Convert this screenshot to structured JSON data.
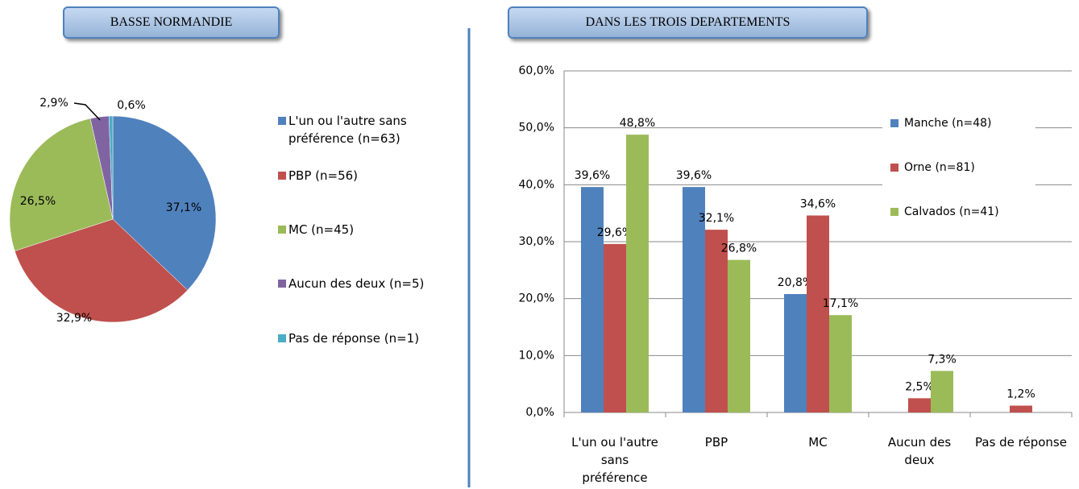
{
  "chart_data": [
    {
      "type": "pie",
      "title": "BASSE NORMANDIE",
      "categories": [
        "L'un ou l'autre sans préférence (n=63)",
        "PBP (n=56)",
        "MC (n=45)",
        "Aucun des deux (n=5)",
        "Pas de réponse (n=1)"
      ],
      "values": [
        37.1,
        32.9,
        26.5,
        2.9,
        0.6
      ],
      "value_labels": [
        "37,1%",
        "32,9%",
        "26,5%",
        "2,9%",
        "0,6%"
      ],
      "colors": [
        "#4f81bd",
        "#c0504d",
        "#9bbb59",
        "#8064a2",
        "#4bacc6"
      ]
    },
    {
      "type": "bar",
      "title": "DANS LES TROIS DEPARTEMENTS",
      "categories": [
        "L'un ou l'autre sans préférence",
        "PBP",
        "MC",
        "Aucun des deux",
        "Pas de réponse"
      ],
      "series": [
        {
          "name": "Manche (n=48)",
          "color": "#4f81bd",
          "values": [
            39.6,
            39.6,
            20.8,
            null,
            null
          ],
          "value_labels": [
            "39,6%",
            "39,6%",
            "20,8%",
            null,
            null
          ]
        },
        {
          "name": "Orne (n=81)",
          "color": "#c0504d",
          "values": [
            29.6,
            32.1,
            34.6,
            2.5,
            1.2
          ],
          "value_labels": [
            "29,6%",
            "32,1%",
            "34,6%",
            "2,5%",
            "1,2%"
          ]
        },
        {
          "name": "Calvados (n=41)",
          "color": "#9bbb59",
          "values": [
            48.8,
            26.8,
            17.1,
            7.3,
            null
          ],
          "value_labels": [
            "48,8%",
            "26,8%",
            "17,1%",
            "7,3%",
            null
          ]
        }
      ],
      "ylim": [
        0,
        60
      ],
      "yticks": [
        {
          "value": 0,
          "label": "0,0%"
        },
        {
          "value": 10,
          "label": "10,0%"
        },
        {
          "value": 20,
          "label": "20,0%"
        },
        {
          "value": 30,
          "label": "30,0%"
        },
        {
          "value": 40,
          "label": "40,0%"
        },
        {
          "value": 50,
          "label": "50,0%"
        },
        {
          "value": 60,
          "label": "60,0%"
        }
      ],
      "grid": true,
      "legend": "upper right"
    }
  ]
}
